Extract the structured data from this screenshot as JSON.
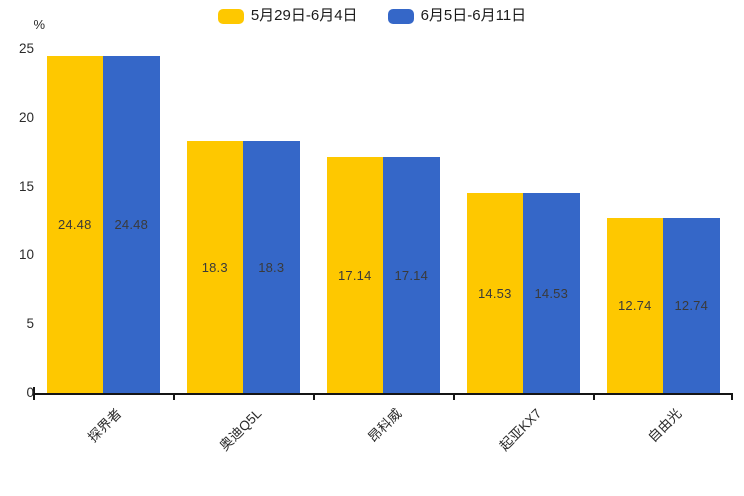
{
  "chart_data": {
    "type": "bar",
    "title": "",
    "categories": [
      "探界者",
      "奥迪Q5L",
      "昂科威",
      "起亚KX7",
      "自由光"
    ],
    "series": [
      {
        "name": "5月29日-6月4日",
        "color": "#fec800",
        "values": [
          24.48,
          18.3,
          17.14,
          14.53,
          12.74
        ]
      },
      {
        "name": "6月5日-6月11日",
        "color": "#3567c8",
        "values": [
          24.48,
          18.3,
          17.14,
          14.53,
          12.74
        ]
      }
    ],
    "xlabel": "",
    "ylabel": "%",
    "ylim": [
      0,
      25
    ],
    "yticks": [
      0,
      5,
      10,
      15,
      20,
      25
    ],
    "grid": false,
    "legend_position": "top",
    "value_labels": true,
    "value_label_color": "#3a3a3a",
    "axis_color": "#151515",
    "x_label_rotation_deg": -45
  }
}
